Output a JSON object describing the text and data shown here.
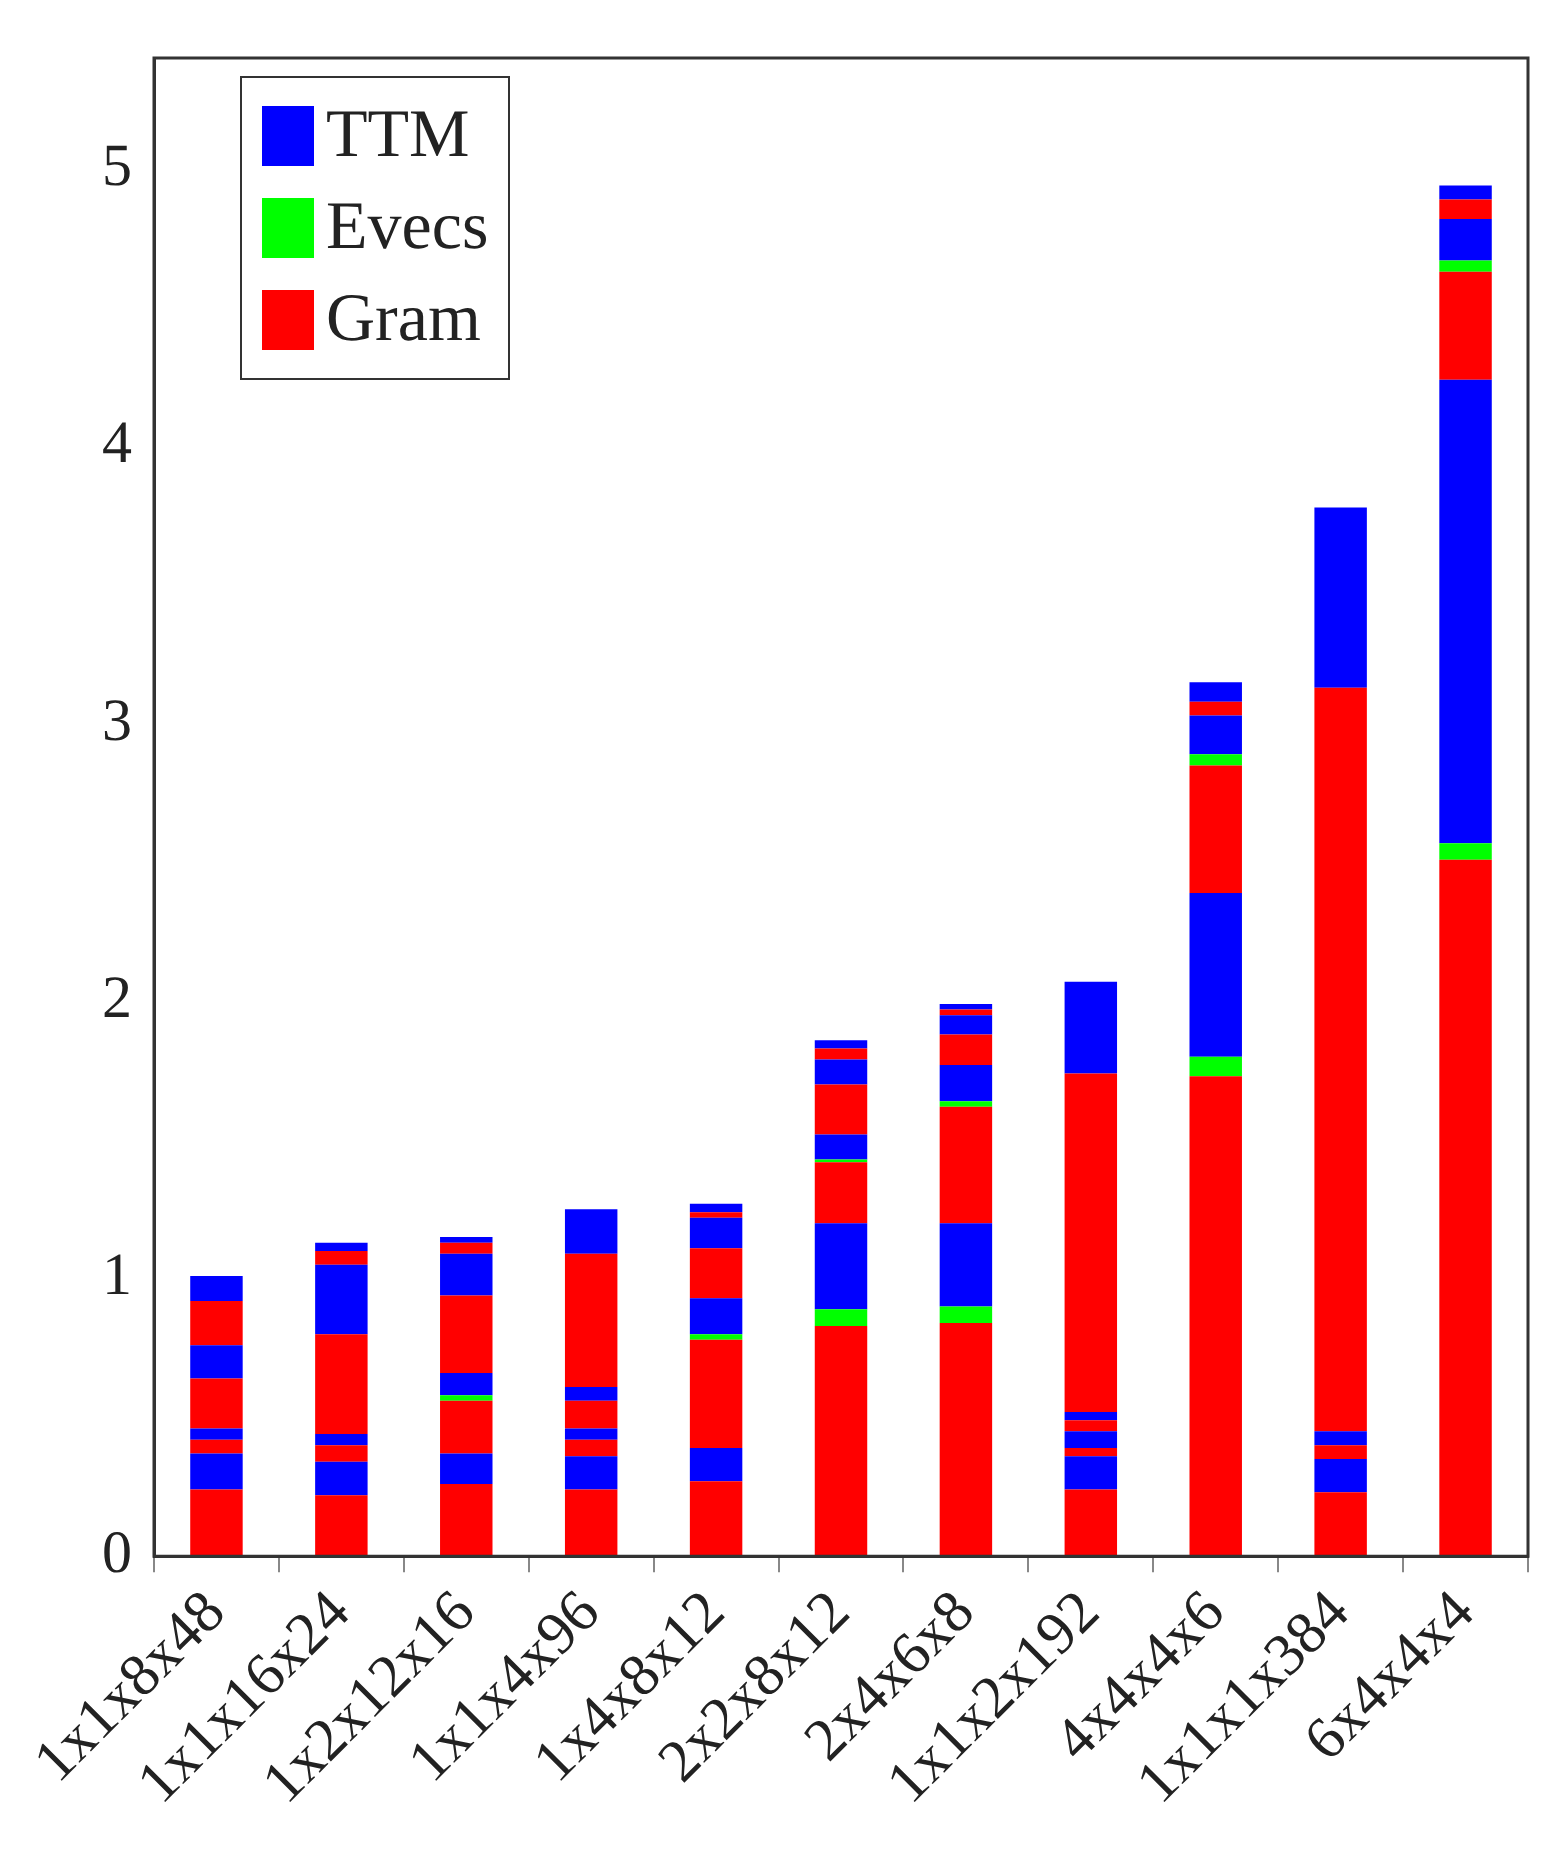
{
  "chart_data": {
    "type": "bar",
    "stacked": true,
    "legend": "top left",
    "categories": [
      "1x1x8x48",
      "1x1x16x24",
      "1x2x12x16",
      "1x1x4x96",
      "1x4x8x12",
      "2x2x8x12",
      "2x4x6x8",
      "1x1x2x192",
      "4x4x4x6",
      "1x1x1x384",
      "6x4x4x4"
    ],
    "ylim": [
      0,
      5.4
    ],
    "yticks": [
      0,
      1,
      2,
      3,
      4,
      5
    ],
    "series": [
      {
        "name": "Gram",
        "color": "#ff0000",
        "values": [
          0.24,
          0.22,
          0.26,
          0.24,
          0.27,
          0.83,
          0.84,
          0.24,
          1.73,
          0.23,
          2.51
        ]
      },
      {
        "name": "Evecs",
        "color": "#00ff00",
        "values": [
          null,
          null,
          null,
          null,
          null,
          0.06,
          0.06,
          null,
          0.07,
          null,
          0.06
        ]
      },
      {
        "name": "TTM",
        "color": "#0000ff",
        "values": [
          0.13,
          0.12,
          0.11,
          0.12,
          0.12,
          0.31,
          0.3,
          0.12,
          0.59,
          0.12,
          1.67
        ]
      },
      {
        "color": "#ff0000",
        "values": [
          0.05,
          0.06,
          0.19,
          0.06,
          0.39,
          0.22,
          0.42,
          0.03,
          0.46,
          0.05,
          0.39
        ]
      },
      {
        "color": "#00ff00",
        "values": [
          null,
          null,
          0.02,
          null,
          0.02,
          0.01,
          0.02,
          null,
          0.04,
          null,
          0.04
        ]
      },
      {
        "color": "#0000ff",
        "values": [
          0.04,
          0.04,
          0.08,
          0.04,
          0.13,
          0.09,
          0.13,
          0.06,
          0.14,
          0.05,
          0.15
        ]
      },
      {
        "color": "#ff0000",
        "values": [
          0.18,
          0.36,
          0.28,
          0.1,
          0.18,
          0.18,
          0.11,
          0.04,
          0.05,
          2.68,
          0.07
        ]
      },
      {
        "color": "#0000ff",
        "values": [
          0.12,
          0.25,
          0.15,
          0.05,
          0.11,
          0.09,
          0.07,
          0.03,
          0.07,
          0.65,
          0.05
        ]
      },
      {
        "color": "#ff0000",
        "values": [
          0.16,
          0.05,
          0.04,
          0.48,
          0.02,
          0.04,
          0.02,
          1.22,
          null,
          null,
          null
        ]
      },
      {
        "color": "#0000ff",
        "values": [
          0.09,
          0.03,
          0.02,
          0.16,
          0.03,
          0.03,
          0.02,
          0.33,
          null,
          null,
          null
        ]
      }
    ]
  }
}
